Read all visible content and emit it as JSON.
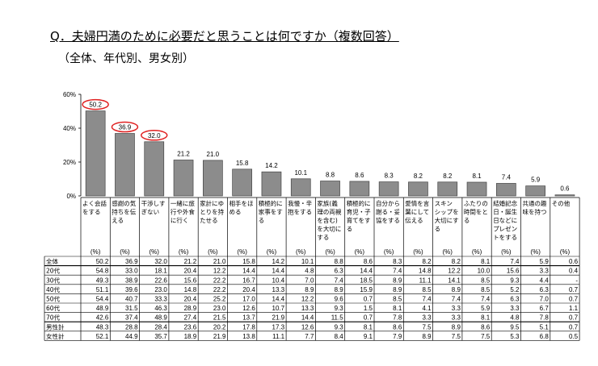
{
  "title": "Q．夫婦円満のために必要だと思うことは何ですか（複数回答）",
  "subtitle": "（全体、年代別、男女別）",
  "chart_data": {
    "type": "bar",
    "ylim": [
      0,
      60
    ],
    "yticks": [
      "0%",
      "20%",
      "40%",
      "60%"
    ],
    "highlight_color": "#e02020",
    "bar_color": "#8c8c8c",
    "highlighted": [
      0,
      1,
      2
    ],
    "unit_label": "(%)",
    "categories": [
      [
        "よく会話",
        "をする"
      ],
      [
        "感謝の気",
        "持ちを伝",
        "える"
      ],
      [
        "干渉しす",
        "ぎない"
      ],
      [
        "一緒に旅",
        "行や外食",
        "に行く"
      ],
      [
        "家計にゆ",
        "とりを持",
        "たせる"
      ],
      [
        "相手をほ",
        "める"
      ],
      [
        "積極的に",
        "家事をす",
        "る"
      ],
      [
        "我慢・辛",
        "抱をする"
      ],
      [
        "家族(義",
        "理の両親",
        "を含む)",
        "を大切に",
        "する"
      ],
      [
        "積極的に",
        "育児・子",
        "育てをす",
        "る"
      ],
      [
        "自分から",
        "謝る・妥",
        "協をする"
      ],
      [
        "愛情を言",
        "葉にして",
        "伝える"
      ],
      [
        "スキン",
        "シップを",
        "大切にす",
        "る"
      ],
      [
        "ふたりの",
        "時間をと",
        "る"
      ],
      [
        "結婚記念",
        "日・誕生",
        "日などに",
        "プレゼン",
        "トをする"
      ],
      [
        "共通の趣",
        "味を持つ"
      ],
      [
        "その他"
      ]
    ],
    "values": [
      50.2,
      36.9,
      32.0,
      21.2,
      21.0,
      15.8,
      14.2,
      10.1,
      8.8,
      8.6,
      8.3,
      8.2,
      8.2,
      8.1,
      7.4,
      5.9,
      0.6
    ],
    "table": [
      {
        "label": "全体",
        "values": [
          "50.2",
          "36.9",
          "32.0",
          "21.2",
          "21.0",
          "15.8",
          "14.2",
          "10.1",
          "8.8",
          "8.6",
          "8.3",
          "8.2",
          "8.2",
          "8.1",
          "7.4",
          "5.9",
          "0.6"
        ]
      },
      {
        "label": "20代",
        "values": [
          "54.8",
          "33.0",
          "18.1",
          "20.4",
          "12.2",
          "14.4",
          "14.4",
          "4.8",
          "6.3",
          "14.4",
          "7.4",
          "14.8",
          "12.2",
          "10.0",
          "15.6",
          "3.3",
          "0.4"
        ]
      },
      {
        "label": "30代",
        "values": [
          "49.3",
          "38.9",
          "22.6",
          "15.6",
          "22.2",
          "16.7",
          "10.4",
          "7.0",
          "7.4",
          "18.5",
          "8.9",
          "11.1",
          "14.1",
          "8.5",
          "9.3",
          "4.4",
          "-"
        ]
      },
      {
        "label": "40代",
        "values": [
          "51.1",
          "39.6",
          "23.0",
          "14.8",
          "22.2",
          "20.4",
          "13.3",
          "8.9",
          "8.9",
          "15.9",
          "8.9",
          "8.5",
          "8.9",
          "8.5",
          "5.2",
          "6.3",
          "0.7"
        ]
      },
      {
        "label": "50代",
        "values": [
          "54.4",
          "40.7",
          "33.3",
          "20.4",
          "25.2",
          "17.0",
          "14.4",
          "12.2",
          "9.6",
          "0.7",
          "8.5",
          "7.4",
          "7.4",
          "7.4",
          "6.3",
          "7.0",
          "0.7"
        ]
      },
      {
        "label": "60代",
        "values": [
          "48.9",
          "31.5",
          "46.3",
          "28.9",
          "23.0",
          "12.6",
          "10.7",
          "13.3",
          "9.3",
          "1.5",
          "8.1",
          "4.1",
          "3.3",
          "5.9",
          "3.3",
          "6.7",
          "1.1"
        ]
      },
      {
        "label": "70代",
        "values": [
          "42.6",
          "37.4",
          "48.9",
          "27.4",
          "21.5",
          "13.7",
          "21.9",
          "14.4",
          "11.5",
          "0.7",
          "7.8",
          "3.3",
          "3.3",
          "8.1",
          "4.8",
          "7.8",
          "0.7"
        ]
      },
      {
        "label": "男性計",
        "values": [
          "48.3",
          "28.8",
          "28.4",
          "23.6",
          "20.2",
          "17.8",
          "17.3",
          "12.6",
          "9.3",
          "8.1",
          "8.6",
          "7.5",
          "8.9",
          "8.6",
          "9.5",
          "5.1",
          "0.7"
        ]
      },
      {
        "label": "女性計",
        "values": [
          "52.1",
          "44.9",
          "35.7",
          "18.9",
          "21.9",
          "13.8",
          "11.1",
          "7.7",
          "8.4",
          "9.1",
          "7.9",
          "8.9",
          "7.5",
          "7.5",
          "5.3",
          "6.8",
          "0.5"
        ]
      }
    ]
  }
}
